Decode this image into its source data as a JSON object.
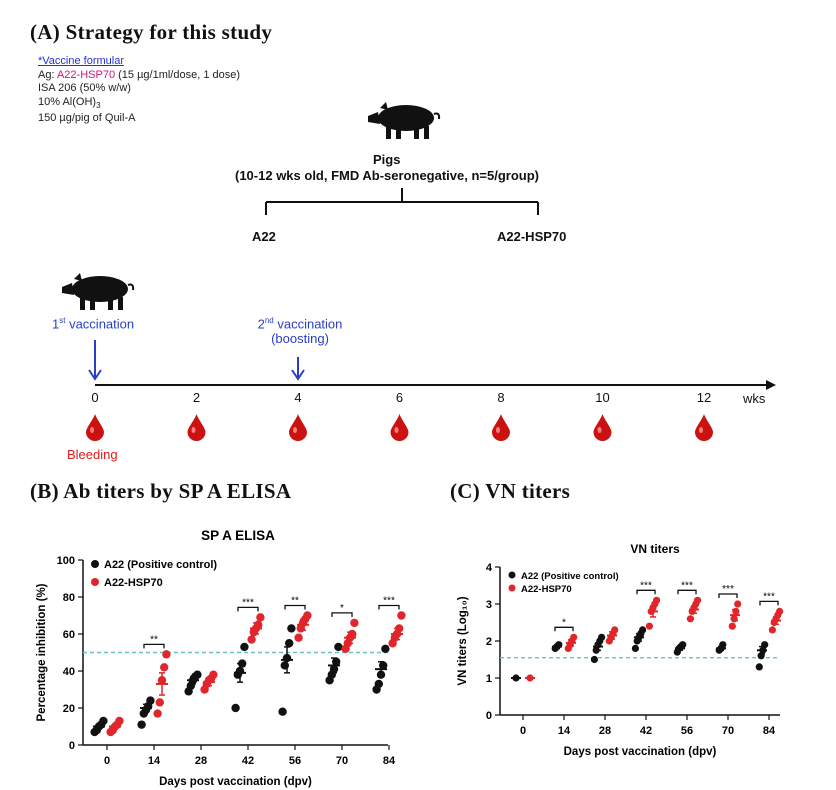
{
  "panel_a": {
    "title": "(A) Strategy for this study",
    "formula_link": "*Vaccine formular",
    "ag_prefix": "Ag: ",
    "ag_name": "A22-HSP70",
    "ag_suffix": " (15 µg/1ml/dose, 1 dose)",
    "line2": "ISA 206 (50% w/w)",
    "line3_main": "10% Al(OH)",
    "line3_sub": "3",
    "line4": "150 µg/pig of Quil-A",
    "pigs_label": "Pigs",
    "pigs_desc": "(10-12 wks old, FMD Ab-seronegative, n=5/group)",
    "group_left": "A22",
    "group_right": "A22-HSP70",
    "vacc1_sup": "st",
    "vacc1_num": "1",
    "vacc1_text": " vaccination",
    "vacc2_num": "2",
    "vacc2_sup": "nd",
    "vacc2_text": " vaccination",
    "vacc2_sub": "(boosting)",
    "timeline_ticks": [
      "0",
      "2",
      "4",
      "6",
      "8",
      "10",
      "12"
    ],
    "timeline_unit": "wks",
    "bleeding_label": "Bleeding",
    "colors": {
      "blood": "#cc1111",
      "arrow": "#2a3fc4",
      "link": "#2233cc",
      "ag": "#d0157a",
      "cutoff": "#6cc2c2"
    }
  },
  "panel_b_title": "(B) Ab titers by SP A ELISA",
  "panel_c_title": "(C) VN titers",
  "chart_data": [
    {
      "type": "scatter",
      "title": "SP A ELISA",
      "xlabel": "Days post vaccination (dpv)",
      "ylabel": "Percentage inhibition (%)",
      "categories": [
        "0",
        "14",
        "28",
        "42",
        "56",
        "70",
        "84"
      ],
      "ylim": [
        0,
        100
      ],
      "yticks": [
        0,
        20,
        40,
        60,
        80,
        100
      ],
      "cutoff": 50,
      "legend_position": "top-left",
      "series": [
        {
          "name": "A22 (Positive control)",
          "color": "#111111",
          "mean": [
            10,
            20,
            35,
            39,
            46,
            43,
            41
          ],
          "sem": [
            1,
            2,
            2,
            5,
            7,
            4,
            4
          ],
          "points": [
            [
              7,
              8,
              10,
              11,
              13
            ],
            [
              11,
              17,
              19,
              21,
              24
            ],
            [
              29,
              32,
              35,
              37,
              38
            ],
            [
              20,
              38,
              40,
              44,
              53
            ],
            [
              18,
              43,
              47,
              55,
              63
            ],
            [
              35,
              38,
              41,
              45,
              53
            ],
            [
              30,
              33,
              38,
              43,
              52
            ]
          ]
        },
        {
          "name": "A22-HSP70",
          "color": "#e0262a",
          "mean": [
            10,
            33,
            34,
            63,
            65,
            58,
            60
          ],
          "sem": [
            1,
            6,
            2,
            3,
            3,
            3,
            3
          ],
          "points": [
            [
              7,
              8,
              10,
              11,
              13
            ],
            [
              17,
              23,
              35,
              42,
              49
            ],
            [
              30,
              33,
              35,
              36,
              38
            ],
            [
              57,
              61,
              63,
              65,
              69
            ],
            [
              58,
              63,
              66,
              68,
              70
            ],
            [
              52,
              55,
              58,
              60,
              66
            ],
            [
              55,
              58,
              60,
              63,
              70
            ]
          ]
        }
      ],
      "significance": [
        {
          "category": "14",
          "label": "**"
        },
        {
          "category": "42",
          "label": "***"
        },
        {
          "category": "56",
          "label": "**"
        },
        {
          "category": "70",
          "label": "*"
        },
        {
          "category": "84",
          "label": "***"
        }
      ]
    },
    {
      "type": "scatter",
      "title": "VN titers",
      "xlabel": "Days post vaccination (dpv)",
      "ylabel": "VN titers (Log₁₀)",
      "categories": [
        "0",
        "14",
        "28",
        "42",
        "56",
        "70",
        "84"
      ],
      "ylim": [
        0,
        4
      ],
      "yticks": [
        0,
        1,
        2,
        3,
        4
      ],
      "cutoff": 1.55,
      "legend_position": "top-left",
      "series": [
        {
          "name": "A22 (Positive control)",
          "color": "#111111",
          "mean": [
            1.0,
            1.85,
            1.85,
            2.1,
            1.8,
            1.8,
            1.75
          ],
          "sem": [
            0,
            0.05,
            0.1,
            0.1,
            0.05,
            0.05,
            0.1
          ],
          "points": [
            [
              1.0
            ],
            [
              1.8,
              1.85,
              1.9
            ],
            [
              1.5,
              1.75,
              1.9,
              2.0,
              2.1
            ],
            [
              1.8,
              2.0,
              2.1,
              2.2,
              2.3
            ],
            [
              1.7,
              1.8,
              1.85,
              1.9
            ],
            [
              1.75,
              1.8,
              1.9
            ],
            [
              1.3,
              1.6,
              1.75,
              1.9
            ]
          ]
        },
        {
          "name": "A22-HSP70",
          "color": "#e0262a",
          "mean": [
            1.0,
            1.95,
            2.15,
            2.8,
            2.85,
            2.7,
            2.55
          ],
          "sem": [
            0,
            0.08,
            0.1,
            0.15,
            0.1,
            0.15,
            0.1
          ],
          "points": [
            [
              1.0
            ],
            [
              1.8,
              1.9,
              2.0,
              2.1
            ],
            [
              2.0,
              2.1,
              2.2,
              2.3
            ],
            [
              2.4,
              2.8,
              2.9,
              3.0,
              3.1
            ],
            [
              2.6,
              2.8,
              2.9,
              3.0,
              3.1
            ],
            [
              2.4,
              2.6,
              2.8,
              3.0
            ],
            [
              2.3,
              2.5,
              2.6,
              2.7,
              2.8
            ]
          ]
        }
      ],
      "significance": [
        {
          "category": "14",
          "label": "*"
        },
        {
          "category": "42",
          "label": "***"
        },
        {
          "category": "56",
          "label": "***"
        },
        {
          "category": "70",
          "label": "***"
        },
        {
          "category": "84",
          "label": "***"
        }
      ]
    }
  ]
}
